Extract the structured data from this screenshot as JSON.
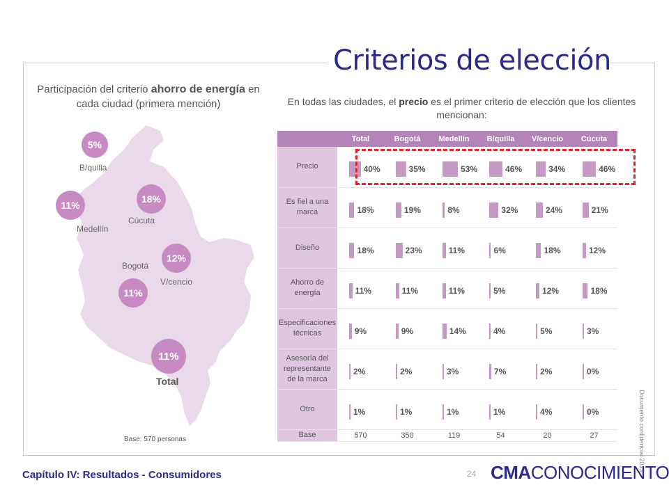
{
  "title": "Criterios de elección",
  "left_panel": {
    "heading_pre": "Participación del criterio ",
    "heading_bold": "ahorro de energía",
    "heading_post": " en cada ciudad (primera mención)",
    "bubbles": {
      "bquilla": "5%",
      "medellin": "11%",
      "cucuta": "18%",
      "vcencio": "12%",
      "bogota": "11%",
      "total": "11%"
    },
    "cities": {
      "bquilla": "B/quilla",
      "medellin": "Medellín",
      "cucuta": "Cúcuta",
      "bogota": "Bogotá",
      "vcencio": "V/cencio",
      "total": "Total"
    },
    "base": "Base: 570 personas"
  },
  "right_panel": {
    "heading_pre": "En todas las ciudades, el ",
    "heading_bold": "precio",
    "heading_post": " es el primer criterio de elección que los clientes mencionan:"
  },
  "table": {
    "columns": [
      "Total",
      "Bogotá",
      "Medellín",
      "B/quilla",
      "V/cencio",
      "Cúcuta"
    ],
    "rows": [
      {
        "label": "Precio",
        "values": [
          "40%",
          "35%",
          "53%",
          "46%",
          "34%",
          "46%"
        ]
      },
      {
        "label": "Es fiel a una marca",
        "values": [
          "18%",
          "19%",
          "8%",
          "32%",
          "24%",
          "21%"
        ]
      },
      {
        "label": "Diseño",
        "values": [
          "18%",
          "23%",
          "11%",
          "6%",
          "18%",
          "12%"
        ]
      },
      {
        "label": "Ahorro de energía",
        "values": [
          "11%",
          "11%",
          "11%",
          "5%",
          "12%",
          "18%"
        ]
      },
      {
        "label": "Especificaciones técnicas",
        "values": [
          "9%",
          "9%",
          "14%",
          "4%",
          "5%",
          "3%"
        ]
      },
      {
        "label": "Asesoría del representante de la marca",
        "values": [
          "2%",
          "2%",
          "3%",
          "7%",
          "2%",
          "0%"
        ]
      },
      {
        "label": "Otro",
        "values": [
          "1%",
          "1%",
          "1%",
          "1%",
          "4%",
          "0%"
        ]
      }
    ],
    "base": {
      "label": "Base",
      "values": [
        "570",
        "350",
        "119",
        "54",
        "20",
        "27"
      ]
    }
  },
  "footer": {
    "chapter": "Capítulo IV: Resultados - Consumidores",
    "page": "24",
    "logo_bold": "CMA",
    "logo_rest": "CONOCIMIENTO",
    "confidential": "Documento confidencial 2013."
  },
  "colors": {
    "accent": "#2b2a8a",
    "bubble": "#c88ac2",
    "header": "#b483b7",
    "highlight": "#e2222d"
  }
}
